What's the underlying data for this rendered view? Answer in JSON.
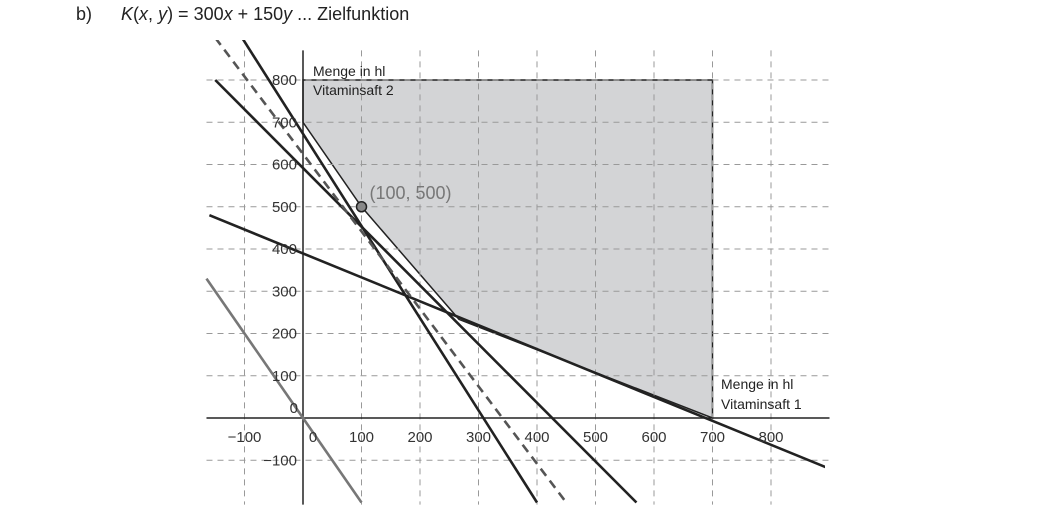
{
  "heading": {
    "part": "b)",
    "formula_prefix": "K(",
    "var_x": "x",
    "sep": ", ",
    "var_y": "y",
    "formula_rest": ") = 300",
    "var_x2": "x",
    "plus": " + 150",
    "var_y2": "y",
    "suffix": " ... Zielfunktion"
  },
  "chart_data": {
    "type": "line",
    "title": "",
    "xlabel": "Menge in hl Vitaminsaft 1",
    "ylabel": "Menge in hl Vitaminsaft 2",
    "xlabel_lines": [
      "Menge in hl",
      "Vitaminsaft 1"
    ],
    "ylabel_lines": [
      "Menge in hl",
      "Vitaminsaft 2"
    ],
    "xlim": [
      -165,
      900
    ],
    "ylim": [
      -205,
      870
    ],
    "x_ticks": [
      -100,
      0,
      100,
      200,
      300,
      400,
      500,
      600,
      700,
      800
    ],
    "y_ticks": [
      -100,
      0,
      100,
      200,
      300,
      400,
      500,
      600,
      700,
      800
    ],
    "x_tick_labels": [
      "−100",
      "0",
      "100",
      "200",
      "300",
      "400",
      "500",
      "600",
      "700",
      "800"
    ],
    "y_tick_labels": [
      "−100",
      "0",
      "100",
      "200",
      "300",
      "400",
      "500",
      "600",
      "700",
      "800"
    ],
    "grid": true,
    "feasible_region": {
      "vertices": [
        [
          0,
          800
        ],
        [
          0,
          700
        ],
        [
          100,
          500
        ],
        [
          266.7,
          233.3
        ],
        [
          700,
          0
        ],
        [
          700,
          800
        ]
      ],
      "color": "#d3d4d6"
    },
    "series": [
      {
        "points": [
          [
            -150,
            1000
          ],
          [
            400,
            -200
          ]
        ],
        "style": "solid",
        "color": "#222222"
      },
      {
        "points": [
          [
            -150,
            800
          ],
          [
            570,
            -200
          ]
        ],
        "style": "solid",
        "color": "#222222"
      },
      {
        "points": [
          [
            -160,
            480
          ],
          [
            900,
            -120
          ]
        ],
        "style": "solid",
        "color": "#222222"
      },
      {
        "points": [
          [
            -150,
            900
          ],
          [
            450,
            -200
          ]
        ],
        "style": "dashed",
        "color": "#555555"
      },
      {
        "points": [
          [
            -165,
            330
          ],
          [
            100,
            -200
          ]
        ],
        "style": "solid",
        "color": "#777777"
      }
    ],
    "point": {
      "x": 100,
      "y": 500,
      "label": "(100, 500)"
    }
  }
}
